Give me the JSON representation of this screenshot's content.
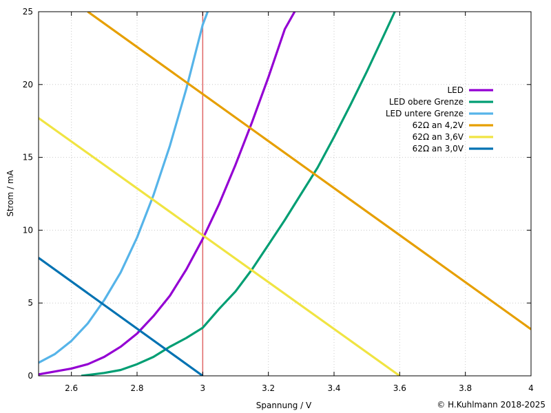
{
  "chart_data": {
    "type": "line",
    "xlabel": "Spannung / V",
    "ylabel": "Strom / mA",
    "xlim": [
      2.5,
      4.0
    ],
    "ylim": [
      0,
      25
    ],
    "x_ticks": [
      {
        "value": 2.6,
        "label": "2.6"
      },
      {
        "value": 2.8,
        "label": "2.8"
      },
      {
        "value": 3.0,
        "label": "3"
      },
      {
        "value": 3.2,
        "label": "3.2"
      },
      {
        "value": 3.4,
        "label": "3.4"
      },
      {
        "value": 3.6,
        "label": "3.6"
      },
      {
        "value": 3.8,
        "label": "3.8"
      },
      {
        "value": 4.0,
        "label": "4"
      }
    ],
    "y_ticks": [
      {
        "value": 0,
        "label": "0"
      },
      {
        "value": 5,
        "label": "5"
      },
      {
        "value": 10,
        "label": "10"
      },
      {
        "value": 15,
        "label": "15"
      },
      {
        "value": 20,
        "label": "20"
      },
      {
        "value": 25,
        "label": "25"
      }
    ],
    "grid": true,
    "legend_position": "top-right",
    "vertical_marker": {
      "x": 3.0,
      "color": "#e06666"
    },
    "copyright": "© H.Kuhlmann 2018-2025",
    "copyright_color": "#f08080",
    "series": [
      {
        "name": "LED",
        "color": "#9400d3",
        "x": [
          2.5,
          2.55,
          2.6,
          2.65,
          2.7,
          2.75,
          2.8,
          2.85,
          2.9,
          2.95,
          3.0,
          3.05,
          3.1,
          3.15,
          3.2,
          3.25,
          3.28
        ],
        "y": [
          0.1,
          0.3,
          0.5,
          0.8,
          1.3,
          2.0,
          2.9,
          4.1,
          5.5,
          7.3,
          9.4,
          11.8,
          14.5,
          17.4,
          20.5,
          23.8,
          25.0
        ]
      },
      {
        "name": "LED obere Grenze",
        "color": "#009e73",
        "x": [
          2.63,
          2.7,
          2.75,
          2.8,
          2.85,
          2.9,
          2.95,
          3.0,
          3.05,
          3.1,
          3.15,
          3.2,
          3.25,
          3.3,
          3.35,
          3.4,
          3.45,
          3.5,
          3.55,
          3.585
        ],
        "y": [
          0.0,
          0.2,
          0.4,
          0.8,
          1.3,
          2.0,
          2.6,
          3.3,
          4.6,
          5.8,
          7.3,
          9.0,
          10.7,
          12.5,
          14.3,
          16.4,
          18.6,
          20.9,
          23.3,
          25.0
        ]
      },
      {
        "name": "LED untere Grenze",
        "color": "#56b4e9",
        "x": [
          2.5,
          2.55,
          2.6,
          2.65,
          2.7,
          2.75,
          2.8,
          2.85,
          2.9,
          2.95,
          3.0,
          3.015
        ],
        "y": [
          0.9,
          1.5,
          2.4,
          3.6,
          5.2,
          7.1,
          9.5,
          12.4,
          15.8,
          19.7,
          24.1,
          25.0
        ]
      },
      {
        "name": "62Ω an 4,2V",
        "color": "#e69f00",
        "x": [
          2.65,
          4.0
        ],
        "y": [
          25.0,
          3.2
        ]
      },
      {
        "name": "62Ω an 3,6V",
        "color": "#f0e442",
        "x": [
          2.5,
          3.6
        ],
        "y": [
          17.7,
          0.0
        ]
      },
      {
        "name": "62Ω an 3,0V",
        "color": "#0072b2",
        "x": [
          2.5,
          3.0
        ],
        "y": [
          8.1,
          0.0
        ]
      }
    ]
  }
}
